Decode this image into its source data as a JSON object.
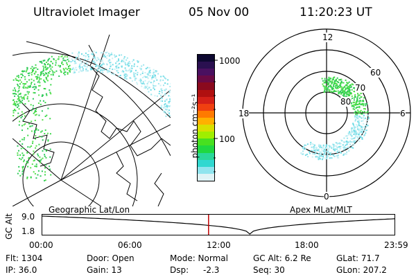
{
  "header": {
    "title": "Ultraviolet Imager",
    "date": "05 Nov 00",
    "time": "11:20:23 UT"
  },
  "colorbar": {
    "label": "photon cm⁻²s⁻¹",
    "tick_labels": [
      "1000",
      "100"
    ],
    "colors": [
      "#0d0830",
      "#2a1050",
      "#4a1060",
      "#6a0a45",
      "#8a0a1e",
      "#b01010",
      "#d42018",
      "#f04010",
      "#ff7a00",
      "#ffb000",
      "#d8e000",
      "#a0ee00",
      "#48e020",
      "#20d840",
      "#2ad89a",
      "#30d8d0",
      "#90e4ee",
      "#dff3f6"
    ]
  },
  "panels": {
    "left_label": "Geographic Lat/Lon",
    "right_label": "Apex MLat/MLT"
  },
  "polar": {
    "mlt_labels": [
      "12",
      "18",
      "6",
      "0"
    ],
    "lat_labels": [
      "60",
      "70",
      "80"
    ]
  },
  "altitude_plot": {
    "y_axis_label": "GC Alt",
    "y_tick_labels": [
      "9.0",
      "1.8"
    ],
    "x_tick_labels": [
      "00:00",
      "06:00",
      "12:00",
      "18:00",
      "23:59"
    ],
    "current_time_fraction": 0.473,
    "line_color": "#c00000"
  },
  "info": {
    "flt": "Flt: 1304",
    "ip": "IP: 36.0",
    "door": "Door: Open",
    "gain": "Gain: 13",
    "mode": "Mode: Normal",
    "dsp": "Dsp:",
    "dsp_value": "-2.3",
    "gcalt": "GC Alt: 6.2 Re",
    "seq": "Seq: 30",
    "glat": "GLat: 71.7",
    "glon": "GLon: 207.2"
  }
}
